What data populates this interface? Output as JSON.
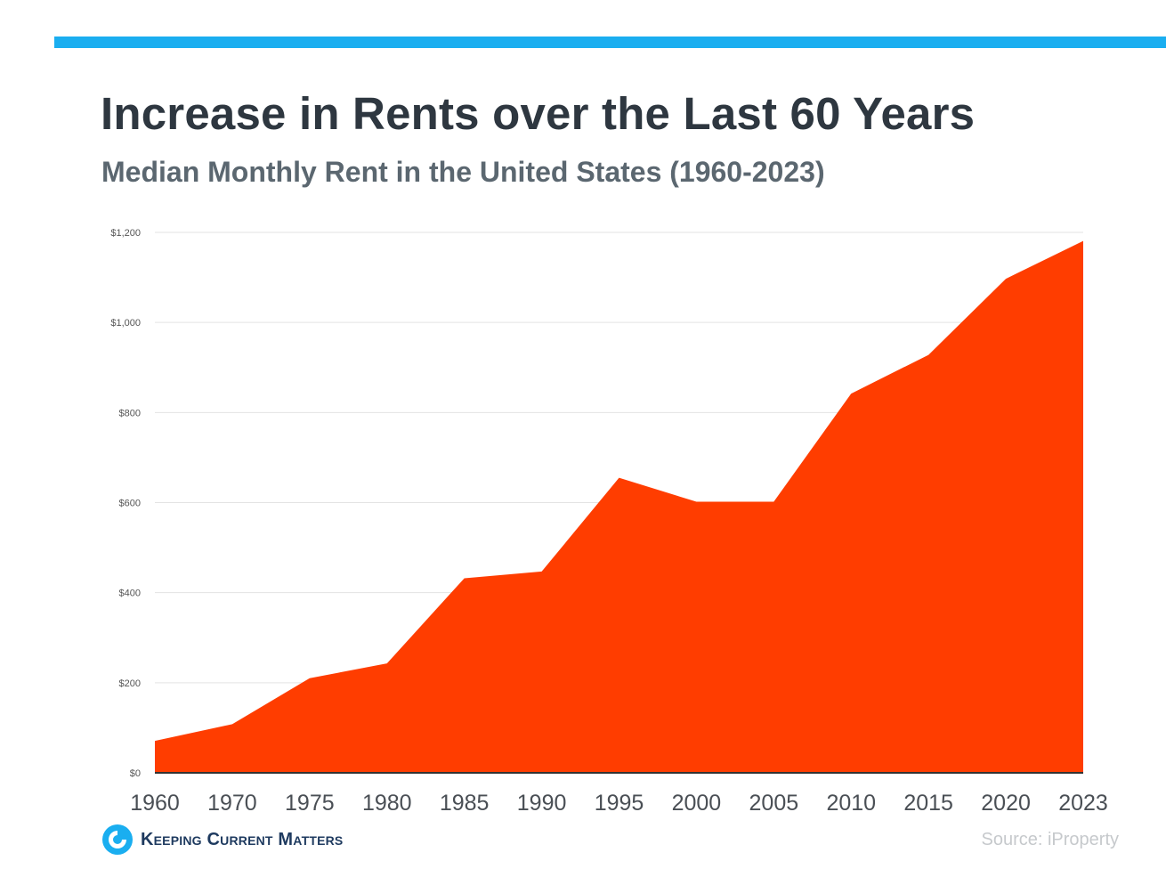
{
  "colors": {
    "accent_bar": "#1aaef0",
    "area_fill": "#ff3d00",
    "grid": "#e3e3e3",
    "axis": "#333333"
  },
  "header": {
    "title": "Increase in Rents over the Last 60 Years",
    "subtitle": "Median Monthly Rent in the United States (1960-2023)"
  },
  "chart_data": {
    "type": "area",
    "title": "Increase in Rents over the Last 60 Years",
    "subtitle": "Median Monthly Rent in the United States (1960-2023)",
    "xlabel": "",
    "ylabel": "",
    "categories": [
      "1960",
      "1970",
      "1975",
      "1980",
      "1985",
      "1990",
      "1995",
      "2000",
      "2005",
      "2010",
      "2015",
      "2020",
      "2023"
    ],
    "series": [
      {
        "name": "Median Monthly Rent",
        "values": [
          71,
          108,
          210,
          243,
          432,
          447,
          655,
          602,
          602,
          842,
          928,
          1097,
          1181
        ]
      }
    ],
    "ylim": [
      0,
      1200
    ],
    "yticks": [
      0,
      200,
      400,
      600,
      800,
      1000,
      1200
    ],
    "ytick_labels": [
      "$0",
      "$200",
      "$400",
      "$600",
      "$800",
      "$1,000",
      "$1,200"
    ],
    "grid": true,
    "legend": "none"
  },
  "footer": {
    "logo_text": "Keeping Current Matters",
    "logo_icon": "kcm-swirl-icon",
    "source": "Source: iProperty"
  }
}
